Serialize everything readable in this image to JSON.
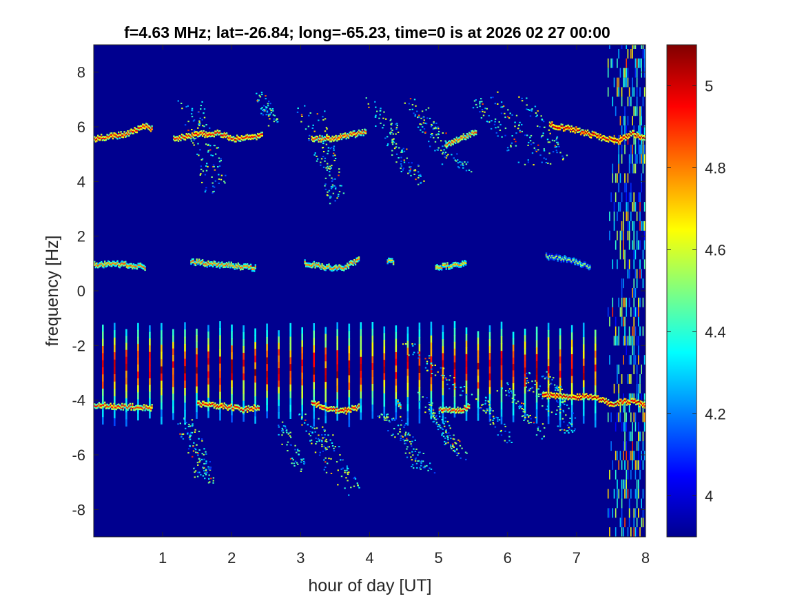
{
  "chart_data": {
    "type": "heatmap",
    "title": "f=4.63 MHz;  lat=-26.84; long=-65.23, time=0 is at 2026 02 27 00:00",
    "xlabel": "hour of day [UT]",
    "ylabel": "frequency [Hz]",
    "xlim": [
      0,
      8
    ],
    "ylim": [
      -9,
      9
    ],
    "x_ticks": [
      1,
      2,
      3,
      4,
      5,
      6,
      7,
      8
    ],
    "x_tick_labels": [
      "1",
      "2",
      "3",
      "4",
      "5",
      "6",
      "7",
      "8"
    ],
    "y_ticks": [
      -8,
      -6,
      -4,
      -2,
      0,
      2,
      4,
      6,
      8
    ],
    "y_tick_labels": [
      "-8",
      "-6",
      "-4",
      "-2",
      "0",
      "2",
      "4",
      "6",
      "8"
    ],
    "colorbar": {
      "colormap": "jet",
      "limits": [
        3.9,
        5.1
      ],
      "ticks": [
        4,
        4.2,
        4.4,
        4.6,
        4.8,
        5
      ],
      "tick_labels": [
        "4",
        "4.2",
        "4.4",
        "4.6",
        "4.8",
        "5"
      ]
    },
    "background_value": 3.92,
    "features": {
      "traces": [
        {
          "x": [
            0.0,
            0.45,
            0.75,
            0.85
          ],
          "y": [
            5.6,
            5.75,
            6.05,
            5.95
          ],
          "value": 5.0
        },
        {
          "x": [
            1.15,
            1.5,
            1.8,
            2.0,
            2.3,
            2.45
          ],
          "y": [
            5.6,
            5.75,
            5.8,
            5.6,
            5.65,
            5.75
          ],
          "value": 5.0
        },
        {
          "x": [
            3.15,
            3.45,
            3.75,
            3.95
          ],
          "y": [
            5.6,
            5.6,
            5.75,
            5.85
          ],
          "value": 4.95
        },
        {
          "x": [
            5.1,
            5.3,
            5.55
          ],
          "y": [
            5.4,
            5.6,
            5.85
          ],
          "value": 4.9
        },
        {
          "x": [
            6.6,
            7.0,
            7.4,
            7.6,
            7.8,
            8.0
          ],
          "y": [
            6.1,
            5.9,
            5.6,
            5.5,
            5.8,
            5.6
          ],
          "value": 5.05
        },
        {
          "x": [
            0.0,
            0.4,
            0.75
          ],
          "y": [
            1.0,
            1.0,
            0.9
          ],
          "value": 4.85
        },
        {
          "x": [
            1.4,
            1.7,
            2.0,
            2.35
          ],
          "y": [
            1.1,
            1.0,
            0.95,
            0.85
          ],
          "value": 4.85
        },
        {
          "x": [
            3.05,
            3.35,
            3.6,
            3.85
          ],
          "y": [
            1.05,
            0.9,
            0.85,
            1.2
          ],
          "value": 4.85
        },
        {
          "x": [
            4.25,
            4.35
          ],
          "y": [
            1.15,
            1.05
          ],
          "value": 4.8
        },
        {
          "x": [
            4.95,
            5.2,
            5.4
          ],
          "y": [
            0.9,
            0.95,
            1.05
          ],
          "value": 4.8
        },
        {
          "x": [
            6.55,
            6.9,
            7.2
          ],
          "y": [
            1.3,
            1.15,
            0.9
          ],
          "value": 4.6
        },
        {
          "x": [
            0.0,
            0.4,
            0.85
          ],
          "y": [
            -4.15,
            -4.2,
            -4.25
          ],
          "value": 4.95
        },
        {
          "x": [
            1.5,
            1.9,
            2.15,
            2.4
          ],
          "y": [
            -4.1,
            -4.2,
            -4.3,
            -4.25
          ],
          "value": 5.0
        },
        {
          "x": [
            3.15,
            3.4,
            3.65,
            3.85
          ],
          "y": [
            -4.05,
            -4.3,
            -4.35,
            -4.2
          ],
          "value": 5.0
        },
        {
          "x": [
            4.4,
            4.45
          ],
          "y": [
            -4.05,
            -4.2
          ],
          "value": 4.8
        },
        {
          "x": [
            5.0,
            5.3,
            5.45
          ],
          "y": [
            -4.3,
            -4.35,
            -4.2
          ],
          "value": 4.95
        },
        {
          "x": [
            6.5,
            6.9,
            7.2,
            7.5,
            7.8,
            8.0
          ],
          "y": [
            -3.8,
            -3.85,
            -3.85,
            -4.1,
            -4.0,
            -4.2
          ],
          "value": 5.05
        }
      ],
      "streaks": [
        {
          "x0": 1.3,
          "y0": 7.1,
          "x1": 1.7,
          "y1": 3.5
        },
        {
          "x0": 1.5,
          "y0": 6.8,
          "x1": 1.85,
          "y1": 4.0
        },
        {
          "x0": 2.4,
          "y0": 7.2,
          "x1": 2.6,
          "y1": 6.2
        },
        {
          "x0": 3.0,
          "y0": 6.7,
          "x1": 3.5,
          "y1": 3.3
        },
        {
          "x0": 3.25,
          "y0": 6.5,
          "x1": 3.55,
          "y1": 3.6
        },
        {
          "x0": 4.0,
          "y0": 7.0,
          "x1": 4.55,
          "y1": 4.2
        },
        {
          "x0": 4.2,
          "y0": 6.5,
          "x1": 4.75,
          "y1": 4.0
        },
        {
          "x0": 4.55,
          "y0": 7.0,
          "x1": 5.1,
          "y1": 4.8
        },
        {
          "x0": 4.75,
          "y0": 6.6,
          "x1": 5.4,
          "y1": 4.4
        },
        {
          "x0": 5.5,
          "y0": 7.1,
          "x1": 6.3,
          "y1": 4.5
        },
        {
          "x0": 5.8,
          "y0": 7.2,
          "x1": 6.6,
          "y1": 4.6
        },
        {
          "x0": 6.2,
          "y0": 7.1,
          "x1": 6.8,
          "y1": 4.9
        },
        {
          "x0": 1.25,
          "y0": -4.6,
          "x1": 1.55,
          "y1": -6.8
        },
        {
          "x0": 1.4,
          "y0": -4.8,
          "x1": 1.7,
          "y1": -6.9
        },
        {
          "x0": 2.7,
          "y0": -4.9,
          "x1": 3.0,
          "y1": -6.5
        },
        {
          "x0": 3.0,
          "y0": -4.4,
          "x1": 3.6,
          "y1": -7.3
        },
        {
          "x0": 3.2,
          "y0": -4.7,
          "x1": 3.8,
          "y1": -7.2
        },
        {
          "x0": 4.15,
          "y0": -4.4,
          "x1": 4.75,
          "y1": -6.5
        },
        {
          "x0": 4.4,
          "y0": -4.7,
          "x1": 4.85,
          "y1": -6.7
        },
        {
          "x0": 4.75,
          "y0": -3.8,
          "x1": 5.25,
          "y1": -5.8
        },
        {
          "x0": 4.9,
          "y0": -4.4,
          "x1": 5.4,
          "y1": -6.2
        },
        {
          "x0": 5.6,
          "y0": -3.9,
          "x1": 6.0,
          "y1": -5.5
        },
        {
          "x0": 5.9,
          "y0": -3.4,
          "x1": 6.5,
          "y1": -5.3
        },
        {
          "x0": 6.2,
          "y0": -3.0,
          "x1": 6.9,
          "y1": -5.2
        },
        {
          "x0": 6.55,
          "y0": -3.0,
          "x1": 6.95,
          "y1": -4.9
        },
        {
          "x0": 4.55,
          "y0": -2.0,
          "x1": 5.4,
          "y1": -3.8
        }
      ],
      "stripes": {
        "x_start": 0.12,
        "x_end": 7.3,
        "spacing": 0.17,
        "y_top": -1.3,
        "y_bottom": -4.8,
        "peak_y": -2.8
      },
      "noise_band": {
        "x_start": 7.45,
        "x_end": 8.0,
        "y_min": -9,
        "y_max": 9
      }
    }
  }
}
